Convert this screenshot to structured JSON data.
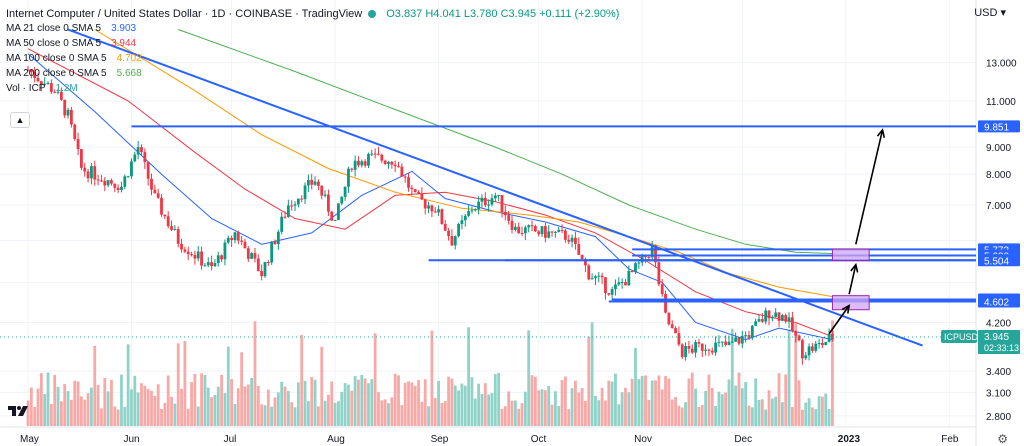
{
  "header": {
    "title": "Internet Computer / United States Dollar · 1D · COINBASE · TradingView",
    "ohlc": "O3.837 H4.041 L3.780 C3.945 +0.111 (+2.90%)",
    "indicators": [
      {
        "label": "MA 21 close 0 SMA 5",
        "value": "3.903",
        "color": "#2962ff"
      },
      {
        "label": "MA 50 close 0 SMA 5",
        "value": "3.944",
        "color": "#f23645"
      },
      {
        "label": "MA 100 close 0 SMA 5",
        "value": "4.702",
        "color": "#ff9800"
      },
      {
        "label": "MA 200 close 0 SMA 5",
        "value": "5.668",
        "color": "#4caf50"
      },
      {
        "label": "Vol · ICP",
        "value": "1.2M",
        "color": "#26a69a"
      }
    ]
  },
  "currency_label": "USD",
  "collapse_icon": "chevron-up-icon",
  "chart_data": {
    "type": "candlestick",
    "symbol": "ICPUSD",
    "yscale": "log",
    "y_ticks": [
      13.0,
      11.0,
      9.0,
      8.0,
      7.0,
      6.0,
      5.0,
      4.2,
      3.4,
      3.1,
      2.8
    ],
    "y_tick_labels": [
      "13.000",
      "11.000",
      "9.000",
      "8.000",
      "7.000",
      "5.773",
      "5.620",
      "5.504",
      "4.643",
      "4.602",
      "4.200",
      "3.945",
      "3.400",
      "3.100",
      "2.800"
    ],
    "x_labels": [
      "May",
      "Jun",
      "Jul",
      "Aug",
      "Sep",
      "Oct",
      "Nov",
      "Dec",
      "2023",
      "Feb"
    ],
    "x_label_days": [
      0,
      31,
      61,
      92,
      123,
      153,
      184,
      214,
      245,
      276
    ],
    "last_day": 241,
    "price_labels": [
      {
        "value": 9.851,
        "text": "9.851",
        "color": "#2962ff"
      },
      {
        "value": 5.773,
        "text": "5.773",
        "color": "#2962ff"
      },
      {
        "value": 5.62,
        "text": "5.620",
        "color": "#2962ff"
      },
      {
        "value": 5.504,
        "text": "5.504",
        "color": "#2962ff"
      },
      {
        "value": 4.643,
        "text": "4.643",
        "color": "#2962ff"
      },
      {
        "value": 4.602,
        "text": "4.602",
        "color": "#2962ff"
      }
    ],
    "last_price": {
      "value": 3.945,
      "text": "3.945",
      "ticker": "ICPUSD",
      "countdown": "02:33:13",
      "color": "#26a69a"
    },
    "key_points": [
      {
        "day": 0,
        "close": 12.6
      },
      {
        "day": 8,
        "close": 11.5
      },
      {
        "day": 12,
        "close": 10.3
      },
      {
        "day": 16,
        "close": 8.2
      },
      {
        "day": 22,
        "close": 7.9
      },
      {
        "day": 28,
        "close": 7.6
      },
      {
        "day": 33,
        "close": 9.0
      },
      {
        "day": 38,
        "close": 7.2
      },
      {
        "day": 45,
        "close": 6.0
      },
      {
        "day": 55,
        "close": 5.3
      },
      {
        "day": 62,
        "close": 6.2
      },
      {
        "day": 70,
        "close": 5.2
      },
      {
        "day": 78,
        "close": 7.0
      },
      {
        "day": 86,
        "close": 7.8
      },
      {
        "day": 92,
        "close": 6.5
      },
      {
        "day": 97,
        "close": 8.4
      },
      {
        "day": 102,
        "close": 8.6
      },
      {
        "day": 110,
        "close": 8.5
      },
      {
        "day": 116,
        "close": 7.2
      },
      {
        "day": 122,
        "close": 6.9
      },
      {
        "day": 127,
        "close": 6.0
      },
      {
        "day": 133,
        "close": 6.9
      },
      {
        "day": 140,
        "close": 7.3
      },
      {
        "day": 146,
        "close": 6.3
      },
      {
        "day": 155,
        "close": 6.2
      },
      {
        "day": 162,
        "close": 6.1
      },
      {
        "day": 168,
        "close": 5.2
      },
      {
        "day": 175,
        "close": 4.8
      },
      {
        "day": 181,
        "close": 5.2
      },
      {
        "day": 187,
        "close": 5.8
      },
      {
        "day": 191,
        "close": 4.3
      },
      {
        "day": 196,
        "close": 3.7
      },
      {
        "day": 203,
        "close": 3.8
      },
      {
        "day": 210,
        "close": 3.8
      },
      {
        "day": 216,
        "close": 4.0
      },
      {
        "day": 222,
        "close": 4.4
      },
      {
        "day": 227,
        "close": 4.3
      },
      {
        "day": 232,
        "close": 3.7
      },
      {
        "day": 237,
        "close": 3.8
      },
      {
        "day": 241,
        "close": 3.95
      }
    ],
    "moving_averages": [
      {
        "name": "MA 21",
        "color": "#2962ff",
        "points": [
          [
            0,
            13.5
          ],
          [
            20,
            10.5
          ],
          [
            40,
            8.0
          ],
          [
            55,
            6.6
          ],
          [
            70,
            5.9
          ],
          [
            85,
            6.2
          ],
          [
            100,
            7.3
          ],
          [
            115,
            8.1
          ],
          [
            125,
            7.2
          ],
          [
            140,
            6.8
          ],
          [
            155,
            6.5
          ],
          [
            170,
            6.1
          ],
          [
            180,
            5.3
          ],
          [
            190,
            5.0
          ],
          [
            200,
            4.2
          ],
          [
            215,
            3.9
          ],
          [
            225,
            4.1
          ],
          [
            241,
            3.9
          ]
        ]
      },
      {
        "name": "MA 50",
        "color": "#f23645",
        "points": [
          [
            0,
            13.8
          ],
          [
            30,
            11.0
          ],
          [
            50,
            8.8
          ],
          [
            65,
            7.5
          ],
          [
            80,
            6.6
          ],
          [
            95,
            6.3
          ],
          [
            110,
            7.3
          ],
          [
            125,
            7.4
          ],
          [
            140,
            7.1
          ],
          [
            155,
            6.7
          ],
          [
            170,
            6.2
          ],
          [
            185,
            5.5
          ],
          [
            200,
            4.8
          ],
          [
            215,
            4.4
          ],
          [
            230,
            4.2
          ],
          [
            241,
            3.95
          ]
        ]
      },
      {
        "name": "MA 100",
        "color": "#ff9800",
        "points": [
          [
            20,
            15.0
          ],
          [
            50,
            11.5
          ],
          [
            70,
            9.5
          ],
          [
            90,
            8.2
          ],
          [
            110,
            7.4
          ],
          [
            130,
            6.9
          ],
          [
            150,
            6.7
          ],
          [
            165,
            6.5
          ],
          [
            180,
            6.1
          ],
          [
            195,
            5.7
          ],
          [
            210,
            5.2
          ],
          [
            225,
            4.9
          ],
          [
            241,
            4.7
          ]
        ]
      },
      {
        "name": "MA 200",
        "color": "#4caf50",
        "points": [
          [
            45,
            15.0
          ],
          [
            80,
            12.5
          ],
          [
            110,
            10.6
          ],
          [
            140,
            9.0
          ],
          [
            160,
            8.0
          ],
          [
            180,
            7.0
          ],
          [
            200,
            6.3
          ],
          [
            215,
            5.9
          ],
          [
            230,
            5.7
          ],
          [
            241,
            5.67
          ]
        ]
      }
    ],
    "trendline": {
      "from": {
        "day": 12,
        "value": 15.0
      },
      "to": {
        "day": 268,
        "value": 3.8
      },
      "color": "#2962ff"
    },
    "levels": [
      {
        "value": 9.851,
        "from_day": 31,
        "color": "#2962ff"
      },
      {
        "value": 5.773,
        "from_day": 181,
        "color": "#2962ff"
      },
      {
        "value": 5.62,
        "from_day": 181,
        "color": "#2962ff"
      },
      {
        "value": 5.504,
        "from_day": 120,
        "color": "#2962ff"
      },
      {
        "value": 5.504,
        "from_day": 143,
        "color": "#2962ff"
      },
      {
        "value": 4.643,
        "from_day": 175,
        "color": "#2962ff"
      },
      {
        "value": 4.602,
        "from_day": 174,
        "color": "#2962ff"
      }
    ],
    "zones": [
      {
        "from_day": 241,
        "to_day": 252,
        "low": 5.5,
        "high": 5.78,
        "color": "#d0a6f0"
      },
      {
        "from_day": 241,
        "to_day": 252,
        "low": 4.44,
        "high": 4.72,
        "color": "#d0a6f0"
      }
    ],
    "arrows": [
      {
        "from": {
          "day": 240,
          "value": 4.0
        },
        "to": {
          "day": 246,
          "value": 4.52
        }
      },
      {
        "from": {
          "day": 246,
          "value": 4.75
        },
        "to": {
          "day": 248,
          "value": 5.4
        }
      },
      {
        "from": {
          "day": 248,
          "value": 5.9
        },
        "to": {
          "day": 256,
          "value": 9.7
        }
      }
    ],
    "volume_range": [
      0,
      22
    ]
  }
}
